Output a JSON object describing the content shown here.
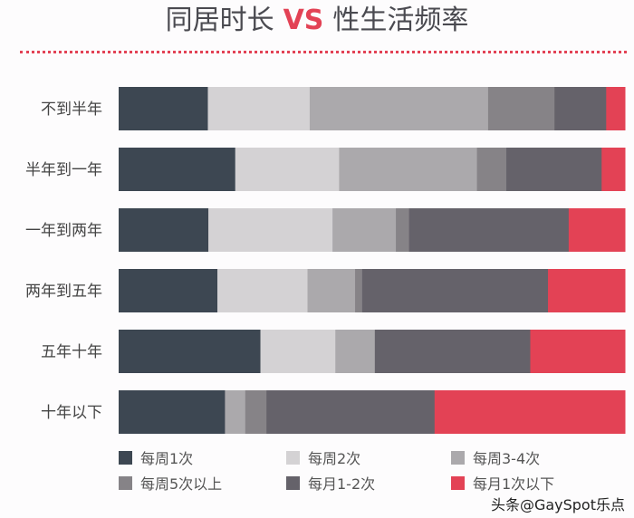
{
  "chart_data": {
    "type": "bar",
    "orientation": "horizontal",
    "stacked": "percent",
    "title": {
      "left": "同居时长",
      "vs": "VS",
      "right": "性生活频率"
    },
    "categories": [
      "不到半年",
      "半年到一年",
      "一年到两年",
      "两年到五年",
      "五年十年",
      "十年以下"
    ],
    "series": [
      {
        "name": "每周1次",
        "color": "#3d4752",
        "values": [
          17.6,
          23.0,
          17.7,
          19.5,
          28.0,
          21.0
        ]
      },
      {
        "name": "每周2次",
        "color": "#d4d2d4",
        "values": [
          20.1,
          20.5,
          24.5,
          17.8,
          14.8,
          0
        ]
      },
      {
        "name": "每周3-4次",
        "color": "#aba9ac",
        "values": [
          35.2,
          27.2,
          12.5,
          9.4,
          7.8,
          4.0
        ]
      },
      {
        "name": "每周5次以上",
        "color": "#868387",
        "values": [
          13.1,
          5.8,
          2.6,
          1.4,
          0,
          4.2
        ]
      },
      {
        "name": "每月1-2次",
        "color": "#65626a",
        "values": [
          10.2,
          18.8,
          31.5,
          36.7,
          30.7,
          33.2
        ]
      },
      {
        "name": "每月1次以下",
        "color": "#e34255",
        "values": [
          3.7,
          4.6,
          11.1,
          15.2,
          18.7,
          37.6
        ]
      }
    ],
    "xlim": [
      0,
      100
    ],
    "grid": false,
    "legend_position": "bottom"
  },
  "watermark": "头条@GaySpot乐点"
}
